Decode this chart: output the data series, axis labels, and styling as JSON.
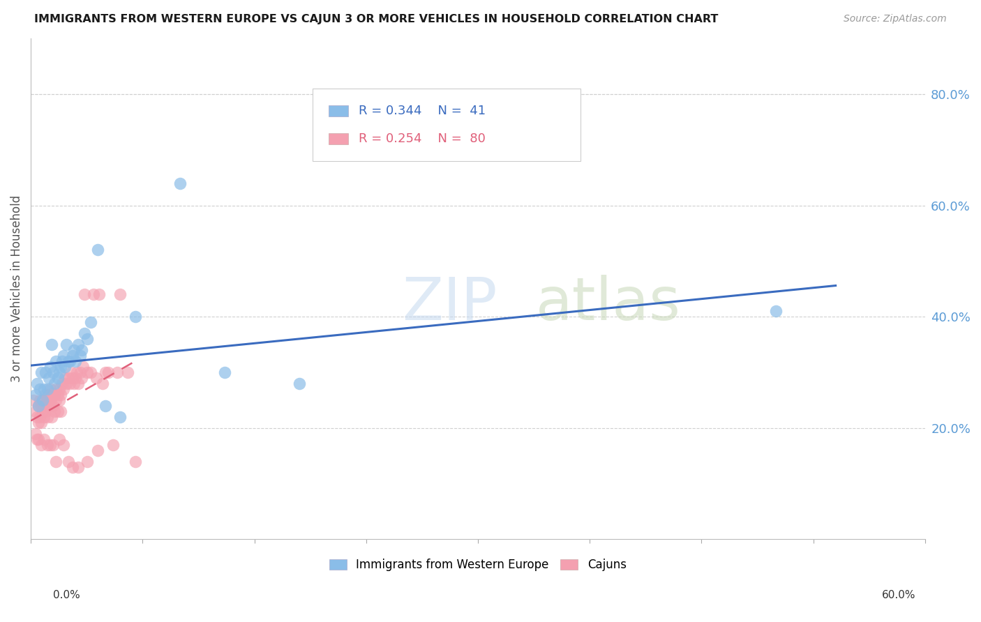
{
  "title": "IMMIGRANTS FROM WESTERN EUROPE VS CAJUN 3 OR MORE VEHICLES IN HOUSEHOLD CORRELATION CHART",
  "source": "Source: ZipAtlas.com",
  "ylabel": "3 or more Vehicles in Household",
  "ylabel_right_ticks": [
    "20.0%",
    "40.0%",
    "60.0%",
    "80.0%"
  ],
  "ylabel_right_vals": [
    0.2,
    0.4,
    0.6,
    0.8
  ],
  "xlim": [
    0.0,
    0.6
  ],
  "ylim": [
    0.0,
    0.9
  ],
  "blue_R": 0.344,
  "blue_N": 41,
  "pink_R": 0.254,
  "pink_N": 80,
  "blue_color": "#8abde8",
  "pink_color": "#f4a0b0",
  "blue_line_color": "#3a6bbf",
  "pink_line_color": "#e0607a",
  "blue_scatter_x": [
    0.003,
    0.004,
    0.005,
    0.006,
    0.007,
    0.008,
    0.009,
    0.01,
    0.011,
    0.012,
    0.013,
    0.014,
    0.015,
    0.016,
    0.017,
    0.018,
    0.019,
    0.02,
    0.021,
    0.022,
    0.023,
    0.024,
    0.025,
    0.026,
    0.028,
    0.029,
    0.03,
    0.032,
    0.033,
    0.034,
    0.036,
    0.038,
    0.04,
    0.045,
    0.05,
    0.06,
    0.07,
    0.1,
    0.13,
    0.18,
    0.5
  ],
  "blue_scatter_y": [
    0.26,
    0.28,
    0.24,
    0.27,
    0.3,
    0.25,
    0.27,
    0.3,
    0.27,
    0.29,
    0.31,
    0.35,
    0.3,
    0.28,
    0.32,
    0.29,
    0.3,
    0.31,
    0.32,
    0.33,
    0.31,
    0.35,
    0.32,
    0.32,
    0.33,
    0.34,
    0.32,
    0.35,
    0.33,
    0.34,
    0.37,
    0.36,
    0.39,
    0.52,
    0.24,
    0.22,
    0.4,
    0.64,
    0.3,
    0.28,
    0.41
  ],
  "pink_scatter_x": [
    0.002,
    0.003,
    0.004,
    0.005,
    0.005,
    0.006,
    0.006,
    0.007,
    0.007,
    0.008,
    0.008,
    0.009,
    0.009,
    0.01,
    0.01,
    0.011,
    0.011,
    0.012,
    0.012,
    0.013,
    0.013,
    0.014,
    0.014,
    0.015,
    0.015,
    0.016,
    0.016,
    0.017,
    0.017,
    0.018,
    0.018,
    0.019,
    0.019,
    0.02,
    0.02,
    0.021,
    0.022,
    0.023,
    0.024,
    0.025,
    0.026,
    0.027,
    0.028,
    0.029,
    0.03,
    0.031,
    0.032,
    0.033,
    0.034,
    0.035,
    0.036,
    0.038,
    0.04,
    0.042,
    0.044,
    0.046,
    0.048,
    0.05,
    0.052,
    0.055,
    0.058,
    0.06,
    0.065,
    0.07,
    0.003,
    0.004,
    0.005,
    0.007,
    0.009,
    0.011,
    0.013,
    0.015,
    0.017,
    0.019,
    0.022,
    0.025,
    0.028,
    0.032,
    0.038,
    0.045
  ],
  "pink_scatter_y": [
    0.25,
    0.23,
    0.22,
    0.24,
    0.21,
    0.25,
    0.22,
    0.24,
    0.21,
    0.23,
    0.25,
    0.22,
    0.24,
    0.23,
    0.26,
    0.25,
    0.22,
    0.24,
    0.26,
    0.25,
    0.27,
    0.24,
    0.22,
    0.26,
    0.24,
    0.26,
    0.23,
    0.25,
    0.27,
    0.26,
    0.23,
    0.25,
    0.27,
    0.26,
    0.23,
    0.28,
    0.27,
    0.29,
    0.28,
    0.29,
    0.28,
    0.3,
    0.29,
    0.28,
    0.29,
    0.3,
    0.28,
    0.3,
    0.29,
    0.31,
    0.44,
    0.3,
    0.3,
    0.44,
    0.29,
    0.44,
    0.28,
    0.3,
    0.3,
    0.17,
    0.3,
    0.44,
    0.3,
    0.14,
    0.19,
    0.18,
    0.18,
    0.17,
    0.18,
    0.17,
    0.17,
    0.17,
    0.14,
    0.18,
    0.17,
    0.14,
    0.13,
    0.13,
    0.14,
    0.16
  ],
  "blue_line_x": [
    0.0,
    0.54
  ],
  "pink_line_x": [
    0.0,
    0.068
  ]
}
